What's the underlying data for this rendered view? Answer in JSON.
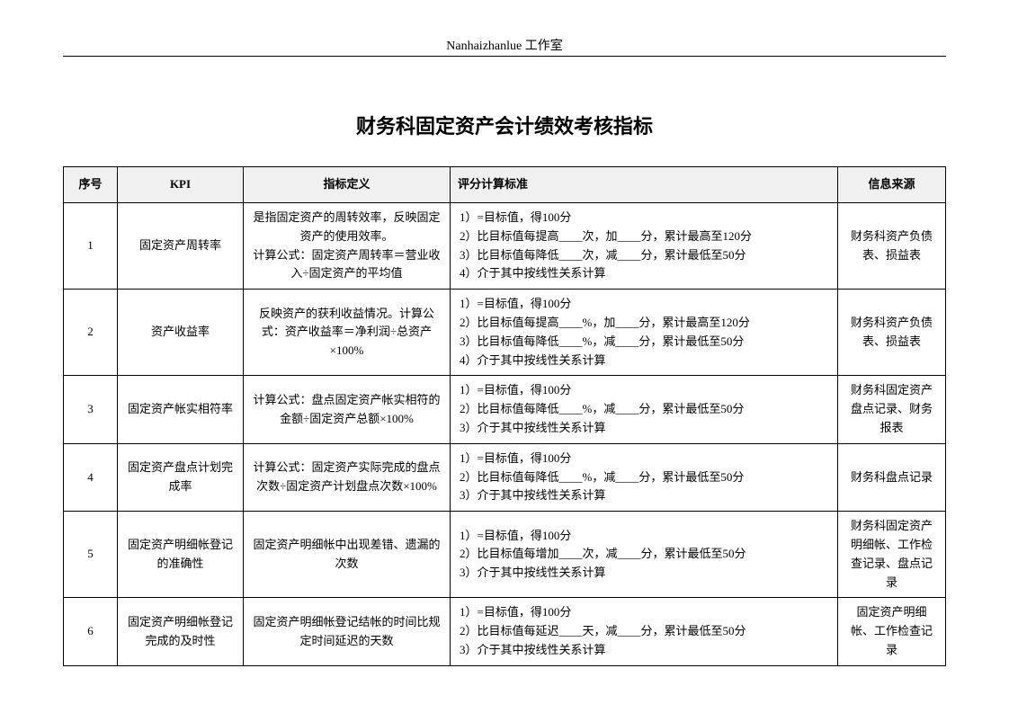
{
  "header": "Nanhaizhanlue 工作室",
  "title": "财务科固定资产会计绩效考核指标",
  "columns": [
    "序号",
    "KPI",
    "指标定义",
    "评分计算标准",
    "信息来源"
  ],
  "rows": [
    {
      "seq": "1",
      "kpi": "固定资产周转率",
      "def": "是指固定资产的周转效率，反映固定资产的使用效率。\n计算公式：固定资产周转率＝营业收入÷固定资产的平均值",
      "std": "1）=目标值，得100分\n2）比目标值每提高____次，加____分，累计最高至120分\n3）比目标值每降低____次，减____分，累计最低至50分\n4）介于其中按线性关系计算",
      "src": "财务科资产负债表、损益表"
    },
    {
      "seq": "2",
      "kpi": "资产收益率",
      "def": "反映资产的获利收益情况。计算公式：资产收益率＝净利润÷总资产×100%",
      "std": "1）=目标值，得100分\n2）比目标值每提高____%，加____分，累计最高至120分\n3）比目标值每降低____%，减____分，累计最低至50分\n4）介于其中按线性关系计算",
      "src": "财务科资产负债表、损益表"
    },
    {
      "seq": "3",
      "kpi": "固定资产帐实相符率",
      "def": "计算公式：盘点固定资产帐实相符的金额÷固定资产总额×100%",
      "std": "1）=目标值，得100分\n2）比目标值每降低____%，减____分，累计最低至50分\n3）介于其中按线性关系计算",
      "src": "财务科固定资产盘点记录、财务报表"
    },
    {
      "seq": "4",
      "kpi": "固定资产盘点计划完成率",
      "def": "计算公式：固定资产实际完成的盘点次数÷固定资产计划盘点次数×100%",
      "std": "1）=目标值，得100分\n2）比目标值每降低____%，减____分，累计最低至50分\n3）介于其中按线性关系计算",
      "src": "财务科盘点记录"
    },
    {
      "seq": "5",
      "kpi": "固定资产明细帐登记的准确性",
      "def": "固定资产明细帐中出现差错、遗漏的次数",
      "std": "1）=目标值，得100分\n2）比目标值每增加____次，减____分，累计最低至50分\n3）介于其中按线性关系计算",
      "src": "财务科固定资产明细帐、工作检查记录、盘点记录"
    },
    {
      "seq": "6",
      "kpi": "固定资产明细帐登记完成的及时性",
      "def": "固定资产明细帐登记结帐的时间比规定时间延迟的天数",
      "std": "1）=目标值，得100分\n2）比目标值每延迟____天，减____分，累计最低至50分\n3）介于其中按线性关系计算",
      "src": "固定资产明细帐、工作检查记录"
    }
  ]
}
